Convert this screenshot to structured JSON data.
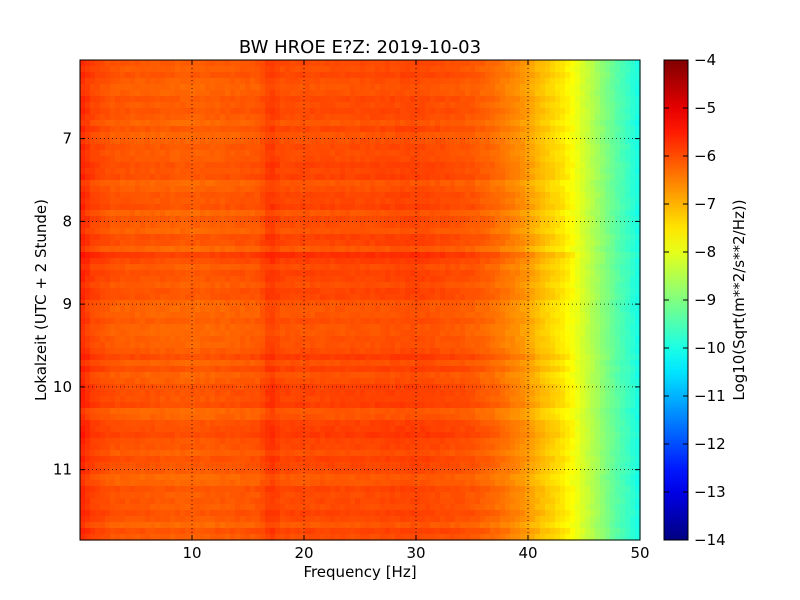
{
  "chart_data": {
    "type": "heatmap",
    "title": "BW HROE E?Z: 2019-10-03",
    "xlabel": "Frequency [Hz]",
    "ylabel": "Lokalzeit (UTC + 2 Stunde)",
    "xlim": [
      0,
      50
    ],
    "ylim": [
      11.85,
      6.05
    ],
    "y_inverted": true,
    "grid": true,
    "x_ticks": [
      10,
      20,
      30,
      40,
      50
    ],
    "y_ticks": [
      7,
      8,
      9,
      10,
      11
    ],
    "colormap": "jet",
    "colorbar": {
      "label": "Log10(Sqrt(m**2/s**2/Hz))",
      "range": [
        -14,
        -4
      ],
      "ticks": [
        -4,
        -5,
        -6,
        -7,
        -8,
        -9,
        -10,
        -11,
        -12,
        -13,
        -14
      ]
    },
    "frequency_profile_hz": [
      0,
      1,
      3,
      10,
      16,
      17,
      18,
      25,
      30,
      35,
      37,
      39,
      40,
      41,
      42,
      43,
      44,
      45,
      46,
      47,
      48,
      49,
      49.8,
      50
    ],
    "log10_psd_profile": [
      -5.6,
      -5.9,
      -6.1,
      -6.2,
      -6.1,
      -5.8,
      -6.0,
      -6.0,
      -5.95,
      -6.1,
      -6.3,
      -6.6,
      -6.8,
      -7.1,
      -7.3,
      -7.5,
      -7.8,
      -8.2,
      -8.6,
      -9.0,
      -9.4,
      -9.7,
      -10.0,
      -9.9
    ],
    "time_rows_hour": [
      8.45,
      9.6,
      10.2,
      10.55,
      11.55
    ],
    "time_rows_offset": [
      0.25,
      0.12,
      0.1,
      0.1,
      0.15
    ],
    "row_noise": 0.12
  }
}
